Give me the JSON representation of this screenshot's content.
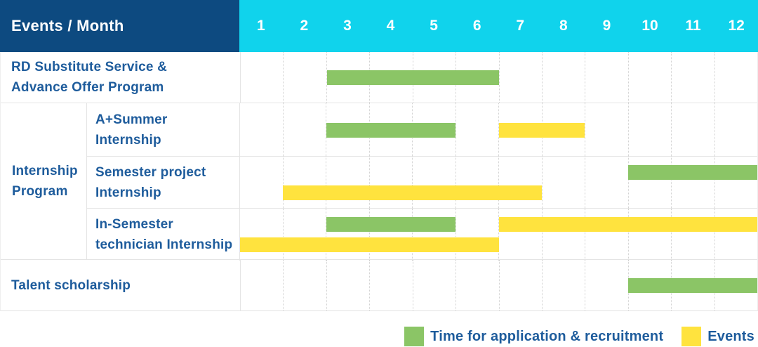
{
  "header": {
    "title": "Events / Month"
  },
  "chart_data": {
    "type": "table",
    "subtype": "gantt",
    "title": "Events / Month",
    "x_unit": "month",
    "months": [
      "1",
      "2",
      "3",
      "4",
      "5",
      "6",
      "7",
      "8",
      "9",
      "10",
      "11",
      "12"
    ],
    "colors": {
      "green": "#8bc566",
      "yellow": "#ffe33e",
      "header_navy": "#0d4a80",
      "header_cyan": "#10d3ec",
      "text_blue": "#1e5c9c"
    },
    "rows": [
      {
        "kind": "simple",
        "label_lines": [
          "RD Substitute Service &",
          "Advance Offer Program"
        ],
        "bars": [
          {
            "color": "green",
            "start": 3,
            "end": 6,
            "lane": "single"
          }
        ]
      },
      {
        "kind": "group",
        "group_label_lines": [
          "Internship",
          "Program"
        ],
        "subrows": [
          {
            "label_lines": [
              "A+Summer",
              "Internship"
            ],
            "bars": [
              {
                "color": "green",
                "start": 3,
                "end": 5,
                "lane": "single"
              },
              {
                "color": "yellow",
                "start": 7,
                "end": 8,
                "lane": "single"
              }
            ]
          },
          {
            "label_lines": [
              "Semester project",
              "Internship"
            ],
            "bars": [
              {
                "color": "green",
                "start": 10,
                "end": 12,
                "lane": "upper"
              },
              {
                "color": "yellow",
                "start": 2,
                "end": 7,
                "lane": "lower"
              }
            ]
          },
          {
            "label_lines": [
              "In-Semester",
              "technician Internship"
            ],
            "bars": [
              {
                "color": "green",
                "start": 3,
                "end": 5,
                "lane": "upper"
              },
              {
                "color": "yellow",
                "start": 7,
                "end": 12,
                "lane": "upper"
              },
              {
                "color": "yellow",
                "start": 1,
                "end": 6,
                "lane": "lower"
              }
            ]
          }
        ]
      },
      {
        "kind": "simple",
        "label_lines": [
          "Talent scholarship"
        ],
        "bars": [
          {
            "color": "green",
            "start": 10,
            "end": 12,
            "lane": "single"
          }
        ]
      }
    ],
    "legend": [
      {
        "color": "green",
        "label": "Time for application & recruitment"
      },
      {
        "color": "yellow",
        "label": "Events"
      }
    ]
  }
}
